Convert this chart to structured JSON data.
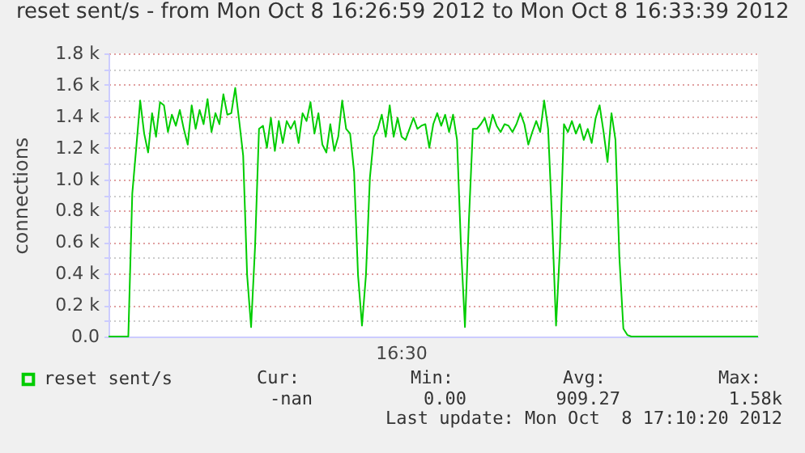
{
  "chart_data": {
    "type": "line",
    "title": "reset sent/s - from Mon Oct  8 16:26:59 2012 to Mon Oct  8 16:33:39 2012",
    "ylabel": "connections",
    "categories": [
      null,
      null,
      null,
      null,
      null,
      null,
      null,
      null,
      null,
      null,
      null,
      null,
      null,
      null,
      null,
      null,
      null,
      null,
      null,
      null,
      null,
      null,
      null,
      null,
      null,
      null,
      null,
      null,
      null,
      null,
      null,
      null,
      null,
      null,
      null,
      null,
      null,
      null,
      null,
      null,
      null,
      null,
      null,
      null,
      null,
      null,
      null,
      null,
      null,
      null,
      null,
      null,
      null,
      null,
      null,
      null,
      null,
      null,
      null,
      null,
      null,
      null,
      null,
      null,
      null,
      null,
      null,
      null,
      null,
      null,
      null,
      null,
      null,
      null,
      null,
      null,
      null,
      null,
      null,
      null,
      null,
      null,
      null,
      null,
      null,
      null,
      null,
      null,
      null,
      null,
      null,
      null,
      null,
      null,
      null,
      null,
      null,
      null,
      null,
      null,
      null,
      null,
      null,
      null,
      null,
      null,
      null,
      null,
      null,
      null,
      null,
      null,
      null,
      null,
      null,
      null,
      null,
      null,
      null,
      null,
      null,
      null,
      null,
      null,
      null,
      null,
      null,
      null,
      null,
      null,
      null,
      null,
      null,
      null,
      null,
      null,
      null,
      null,
      null,
      null,
      null,
      null,
      null,
      null,
      null,
      null,
      null,
      null,
      null,
      null,
      null,
      null,
      null,
      null,
      null,
      null,
      null,
      null,
      null,
      null,
      null,
      null,
      null,
      null,
      null
    ],
    "series": [
      {
        "name": "reset sent/s",
        "color": "#00cc00",
        "values": [
          0,
          0,
          0,
          0,
          0,
          0,
          910,
          1200,
          1500,
          1290,
          1170,
          1420,
          1270,
          1490,
          1470,
          1300,
          1410,
          1340,
          1440,
          1320,
          1220,
          1470,
          1320,
          1440,
          1350,
          1510,
          1300,
          1420,
          1350,
          1540,
          1410,
          1420,
          1580,
          1370,
          1150,
          390,
          60,
          570,
          1320,
          1340,
          1200,
          1390,
          1180,
          1370,
          1230,
          1370,
          1320,
          1370,
          1230,
          1420,
          1370,
          1490,
          1290,
          1420,
          1220,
          1170,
          1350,
          1180,
          1270,
          1500,
          1320,
          1290,
          1050,
          390,
          70,
          390,
          1010,
          1270,
          1320,
          1410,
          1270,
          1470,
          1270,
          1390,
          1270,
          1250,
          1320,
          1390,
          1320,
          1340,
          1350,
          1200,
          1350,
          1420,
          1340,
          1410,
          1300,
          1410,
          1250,
          570,
          60,
          740,
          1320,
          1320,
          1350,
          1390,
          1300,
          1410,
          1340,
          1300,
          1350,
          1340,
          1300,
          1350,
          1420,
          1350,
          1220,
          1300,
          1370,
          1300,
          1500,
          1320,
          740,
          70,
          570,
          1350,
          1300,
          1370,
          1290,
          1350,
          1250,
          1320,
          1230,
          1390,
          1470,
          1300,
          1110,
          1420,
          1250,
          500,
          50,
          10,
          0,
          0,
          0,
          0,
          0,
          0,
          0,
          0,
          0,
          0,
          0,
          0,
          0,
          0,
          0,
          0,
          0,
          0,
          0,
          0,
          0,
          0,
          0,
          0,
          0,
          0,
          0,
          0,
          0,
          0,
          0,
          0,
          0
        ]
      }
    ],
    "ylim": [
      0,
      1800
    ],
    "yticks": [
      {
        "value": 0,
        "label": "0.0"
      },
      {
        "value": 100,
        "label": null
      },
      {
        "value": 200,
        "label": "0.2 k"
      },
      {
        "value": 300,
        "label": null
      },
      {
        "value": 400,
        "label": "0.4 k"
      },
      {
        "value": 500,
        "label": null
      },
      {
        "value": 600,
        "label": "0.6 k"
      },
      {
        "value": 700,
        "label": null
      },
      {
        "value": 800,
        "label": "0.8 k"
      },
      {
        "value": 900,
        "label": null
      },
      {
        "value": 1000,
        "label": "1.0 k"
      },
      {
        "value": 1100,
        "label": null
      },
      {
        "value": 1200,
        "label": "1.2 k"
      },
      {
        "value": 1300,
        "label": null
      },
      {
        "value": 1400,
        "label": "1.4 k"
      },
      {
        "value": 1500,
        "label": null
      },
      {
        "value": 1600,
        "label": "1.6 k"
      },
      {
        "value": 1700,
        "label": null
      },
      {
        "value": 1800,
        "label": "1.8 k"
      }
    ],
    "grid": "y",
    "legend": "bottom left",
    "annotations": [
      "16:30",
      "Cur:",
      "-nan",
      "Min:",
      "0.00",
      "Avg:",
      "909.27",
      "Max:",
      "1.58k",
      "Last update: Mon Oct  8 17:10:20 2012"
    ]
  }
}
